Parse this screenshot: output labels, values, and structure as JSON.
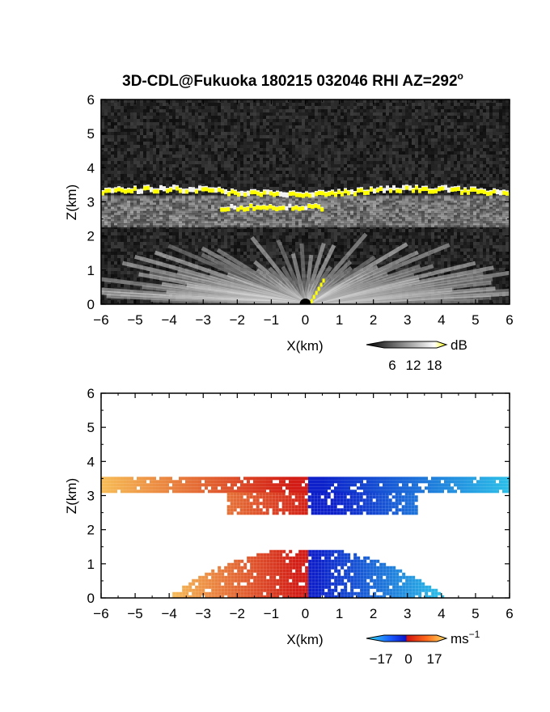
{
  "figure": {
    "title": "3D-CDL@Fukuoka 180215 032046 RHI AZ=292",
    "title_superscript": "o"
  },
  "chart_data": [
    {
      "type": "heatmap",
      "name": "intensity",
      "xlabel": "X(km)",
      "ylabel": "Z(km)",
      "xlim": [
        -6,
        6
      ],
      "ylim": [
        0,
        6
      ],
      "xticks": [
        -6,
        -5,
        -4,
        -3,
        -2,
        -1,
        0,
        1,
        2,
        3,
        4,
        5,
        6
      ],
      "yticks": [
        0,
        1,
        2,
        3,
        4,
        5,
        6
      ],
      "background": "#111111",
      "layers": [
        {
          "x": [
            -6,
            6
          ],
          "z_center": 3.3,
          "z_thickness": 0.15,
          "level": 18
        },
        {
          "x": [
            -2.5,
            0.5
          ],
          "z_center": 2.85,
          "z_thickness": 0.12,
          "level": 18
        },
        {
          "x": [
            -6,
            6
          ],
          "z_center": 2.6,
          "z_thickness": 0.5,
          "level": 9
        },
        {
          "x": [
            -6,
            6
          ],
          "z_center": 0.5,
          "z_thickness": 1.0,
          "level": 14
        }
      ],
      "colorbar": {
        "unit": "dB",
        "ticks": [
          6,
          12,
          18
        ],
        "range": [
          0,
          20
        ],
        "colors": [
          "#000000",
          "#ffffff",
          "#ffff00"
        ]
      }
    },
    {
      "type": "heatmap",
      "name": "doppler",
      "xlabel": "X(km)",
      "ylabel": "Z(km)",
      "xlim": [
        -6,
        6
      ],
      "ylim": [
        0,
        6
      ],
      "xticks": [
        -6,
        -5,
        -4,
        -3,
        -2,
        -1,
        0,
        1,
        2,
        3,
        4,
        5,
        6
      ],
      "yticks": [
        0,
        1,
        2,
        3,
        4,
        5,
        6
      ],
      "background": "#ffffff",
      "regions": [
        {
          "x": [
            -6,
            6
          ],
          "z": [
            3.1,
            3.55
          ],
          "v_at_xmin": 14,
          "v_at_xmax": -14
        },
        {
          "x": [
            -2.3,
            3.3
          ],
          "z": [
            2.5,
            3.1
          ],
          "v_at_xmin": 8,
          "v_at_xmax": -8
        },
        {
          "x": [
            -4,
            4
          ],
          "z": [
            0,
            1.5
          ],
          "v_at_xmin": 14,
          "v_at_xmax": -14
        }
      ],
      "colorbar": {
        "unit": "ms",
        "unit_exponent": "−1",
        "ticks": [
          "−17",
          "0",
          "17"
        ],
        "range": [
          -17,
          17
        ],
        "colors": [
          "#35e6f0",
          "#1a5cff",
          "#0a14c8",
          "#d01010",
          "#ff6a1a",
          "#ffe066"
        ]
      }
    }
  ]
}
